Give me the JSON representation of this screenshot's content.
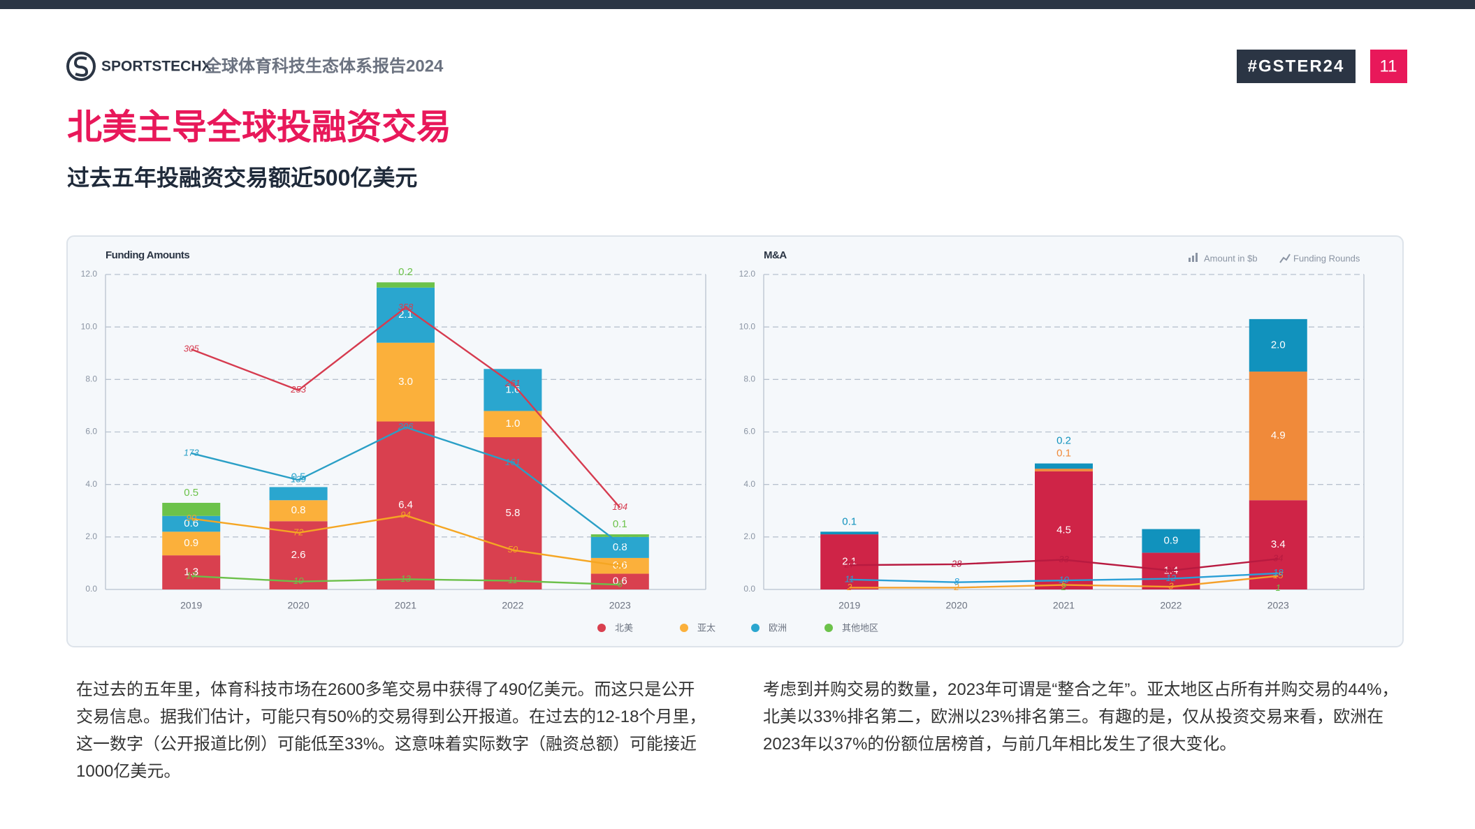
{
  "header": {
    "brand": "SPORTSTECHX",
    "report": "全球体育科技生态体系报告2024",
    "tag": "#GSTER24",
    "page": "11"
  },
  "title": "北美主导全球投融资交易",
  "subtitle": "过去五年投融资交易额近500亿美元",
  "chart_data": [
    {
      "type": "bar",
      "title": "Funding Amounts",
      "categories": [
        "2019",
        "2020",
        "2021",
        "2022",
        "2023"
      ],
      "ylim": [
        0,
        12
      ],
      "yticks": [
        {
          "value": 0,
          "label": "0.0"
        },
        {
          "value": 2,
          "label": "2.0"
        },
        {
          "value": 4,
          "label": "4.0"
        },
        {
          "value": 6,
          "label": "6.0"
        },
        {
          "value": 8,
          "label": "8.0"
        },
        {
          "value": 10,
          "label": "10.0"
        },
        {
          "value": 12,
          "label": "12.0"
        }
      ],
      "y2lim": [
        0,
        400
      ],
      "grid": true,
      "series": [
        {
          "name": "北美",
          "color": "#d9404f",
          "line_color": "#d63b4f",
          "values": [
            1.3,
            2.6,
            6.4,
            5.8,
            0.6
          ],
          "value_labels": [
            "1.3",
            "2.6",
            "6.4",
            "5.8",
            "0.6"
          ],
          "rounds": [
            305,
            253,
            358,
            261,
            104
          ]
        },
        {
          "name": "亚太",
          "color": "#fbb03b",
          "line_color": "#f5a623",
          "values": [
            0.9,
            0.8,
            3,
            1,
            0.6
          ],
          "value_labels": [
            "0.9",
            "0.8",
            "3.0",
            "1.0",
            "0.6"
          ],
          "rounds": [
            90,
            72,
            94,
            50,
            30
          ]
        },
        {
          "name": "欧洲",
          "color": "#2aa6cf",
          "line_color": "#2a9fc6",
          "values": [
            0.6,
            0.5,
            2.1,
            1.6,
            0.8
          ],
          "value_labels": [
            "0.6",
            "0.5",
            "2.1",
            "1.6",
            "0.8"
          ],
          "rounds": [
            173,
            139,
            206,
            161,
            58
          ]
        },
        {
          "name": "其他地区",
          "color": "#6cc24a",
          "line_color": "#6cc04a",
          "values": [
            0.5,
            null,
            0.2,
            null,
            0.1
          ],
          "value_labels": [
            "0.5",
            null,
            "0.2",
            null,
            "0.1"
          ],
          "rounds": [
            17,
            10,
            13,
            11,
            6
          ]
        }
      ]
    },
    {
      "type": "bar",
      "title": "M&A",
      "measures": [
        "Amount in $b",
        "Funding Rounds"
      ],
      "categories": [
        "2019",
        "2020",
        "2021",
        "2022",
        "2023"
      ],
      "ylim": [
        0,
        12
      ],
      "yticks": [
        {
          "value": 0,
          "label": "0.0"
        },
        {
          "value": 2,
          "label": "2.0"
        },
        {
          "value": 4,
          "label": "4.0"
        },
        {
          "value": 6,
          "label": "6.0"
        },
        {
          "value": 8,
          "label": "8.0"
        },
        {
          "value": 10,
          "label": "10.0"
        },
        {
          "value": 12,
          "label": "12.0"
        }
      ],
      "y2lim": [
        0,
        350
      ],
      "grid": true,
      "series": [
        {
          "color": "#cf2447",
          "line_color": "#b81a40",
          "values": [
            2.1,
            null,
            4.5,
            1.4,
            3.4
          ],
          "value_labels": [
            "2.1",
            null,
            "4.5",
            "1.4",
            "3.4"
          ],
          "rounds": [
            27,
            28,
            33,
            21,
            34
          ]
        },
        {
          "color": "#f08a3a",
          "line_color": "#f5a02a",
          "values": [
            null,
            null,
            0.1,
            null,
            4.9
          ],
          "value_labels": [
            null,
            null,
            "0.1",
            null,
            "4.9"
          ],
          "rounds": [
            2,
            2,
            5,
            3,
            15
          ]
        },
        {
          "color": "#1192bd",
          "line_color": "#2a9fd6",
          "values": [
            0.1,
            null,
            0.2,
            0.9,
            2
          ],
          "value_labels": [
            "0.1",
            null,
            "0.2",
            "0.9",
            "2.0"
          ],
          "rounds": [
            11,
            8,
            10,
            12,
            18
          ]
        },
        {
          "color": "#6cc24a",
          "line_color": "#6cc04a",
          "values": [
            null,
            null,
            null,
            null,
            null
          ],
          "value_labels": [
            null,
            null,
            null,
            null,
            null
          ],
          "rounds": [
            null,
            null,
            2,
            null,
            1
          ]
        }
      ]
    }
  ],
  "paragraphs": [
    "在过去的五年里，体育科技市场在2600多笔交易中获得了490亿美元。而这只是公开交易信息。据我们估计，可能只有50%的交易得到公开报道。在过去的12-18个月里，这一数字（公开报道比例）可能低至33%。这意味着实际数字（融资总额）可能接近1000亿美元。",
    "考虑到并购交易的数量，2023年可谓是“整合之年”。亚太地区占所有并购交易的44%，北美以33%排名第二，欧洲以23%排名第三。有趣的是，仅从投资交易来看，欧洲在2023年以37%的份额位居榜首，与前几年相比发生了很大变化。"
  ]
}
